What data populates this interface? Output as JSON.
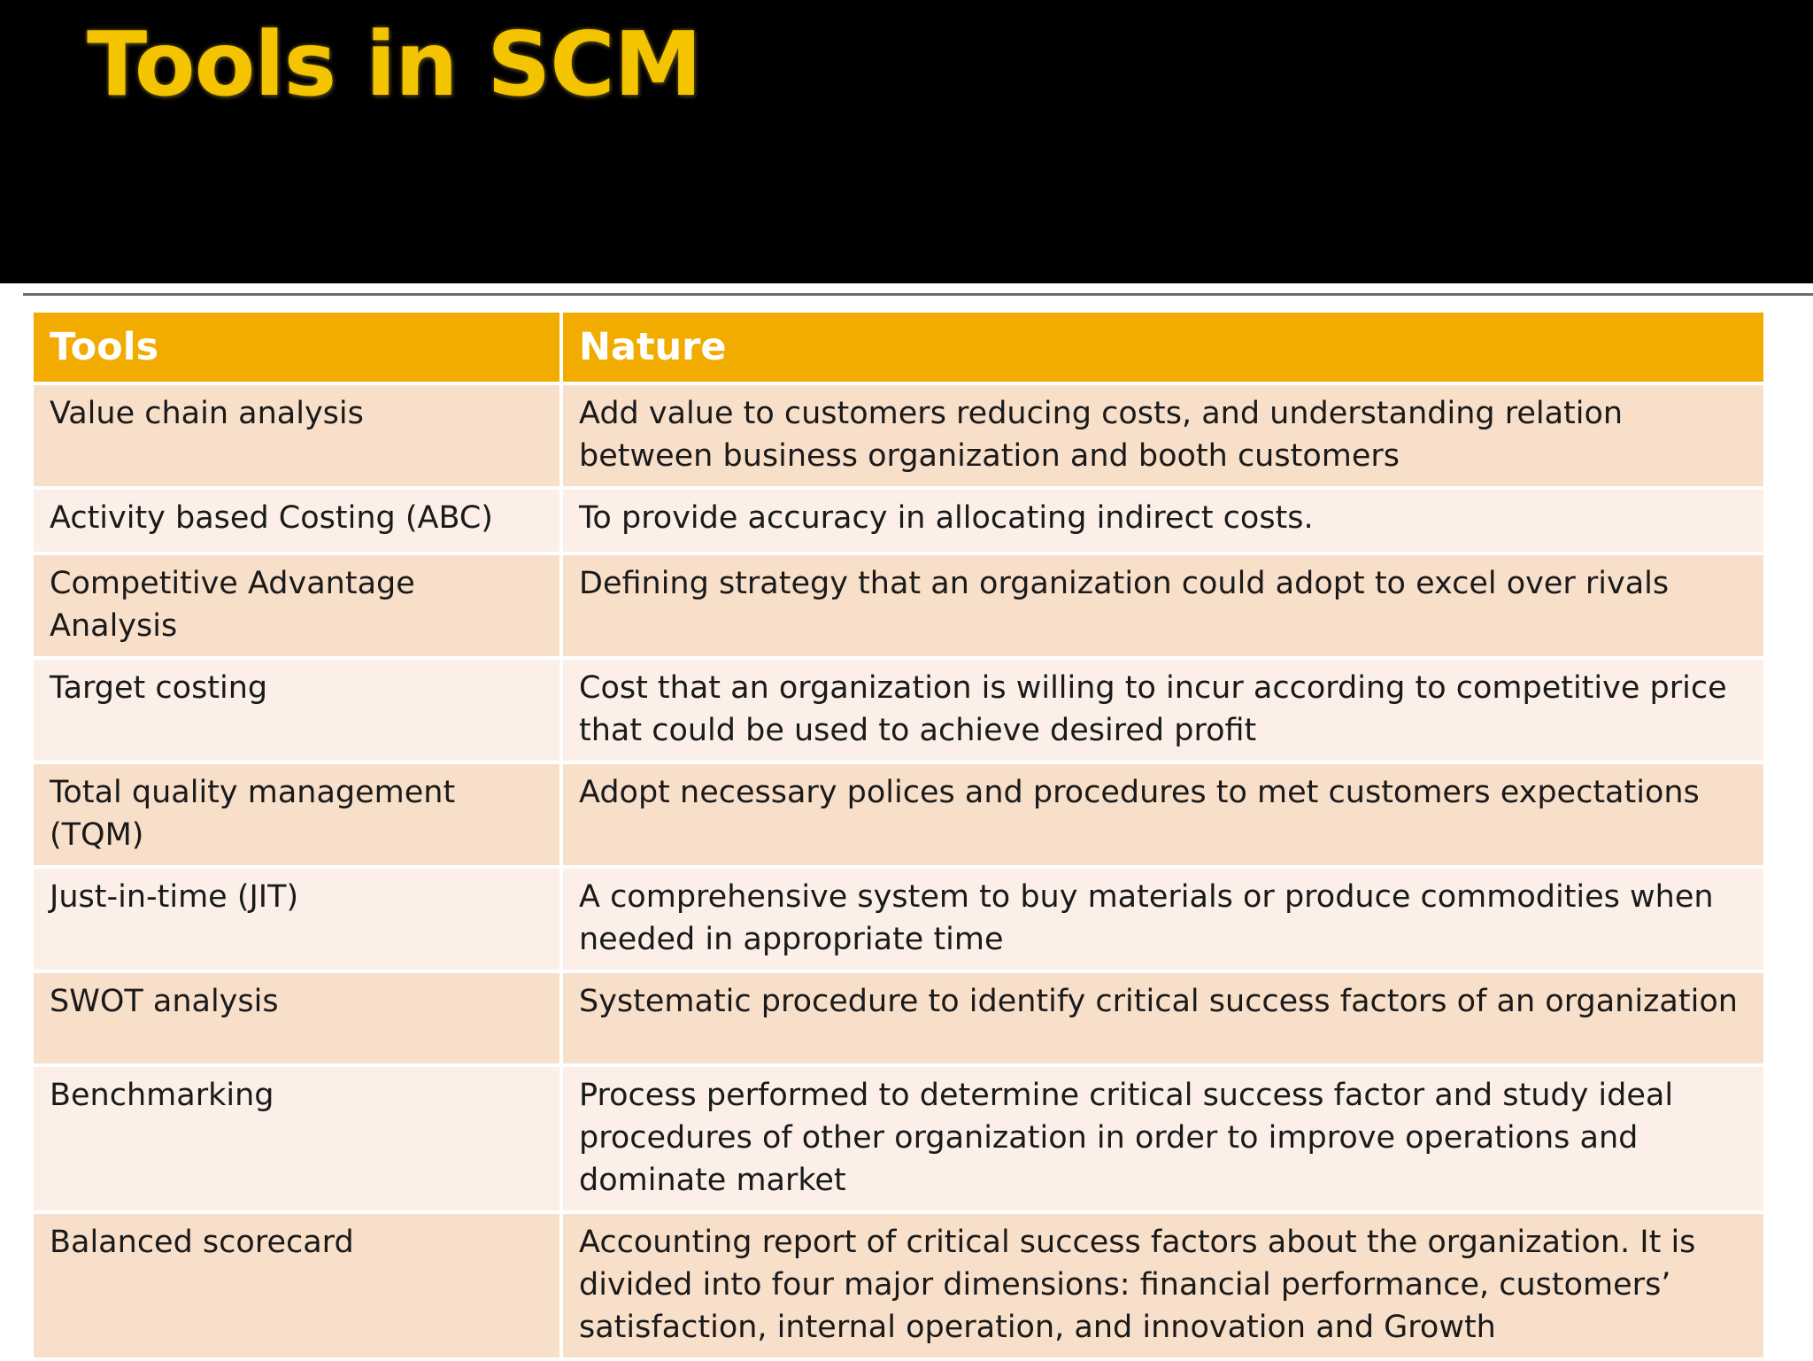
{
  "slide": {
    "title": "Tools in SCM"
  },
  "table": {
    "headers": {
      "tools": "Tools",
      "nature": "Nature"
    },
    "rows": [
      {
        "tool": "Value chain analysis",
        "nature": "Add value to customers reducing costs, and understanding relation between business organization and booth customers"
      },
      {
        "tool": "Activity based Costing (ABC)",
        "nature": "To provide accuracy in allocating indirect costs."
      },
      {
        "tool": "Competitive Advantage Analysis",
        "nature": "Defining strategy that an organization could adopt to excel over rivals"
      },
      {
        "tool": "Target costing",
        "nature": "Cost that an organization is willing to incur according to competitive price that could be used to achieve desired profit"
      },
      {
        "tool": "Total quality management (TQM)",
        "nature": "Adopt necessary polices and procedures to met customers expectations"
      },
      {
        "tool": "Just-in-time (JIT)",
        "nature": "A comprehensive system to buy materials or produce commodities when needed in appropriate time"
      },
      {
        "tool": "SWOT analysis",
        "nature": "Systematic procedure to identify critical success factors of an organization"
      },
      {
        "tool": "Benchmarking",
        "nature": "Process performed to determine critical success factor and study ideal procedures of other organization in order to improve operations and dominate market"
      },
      {
        "tool": "Balanced scorecard",
        "nature": "Accounting report of critical success factors about the organization. It is divided into four major dimensions: financial performance, customers’ satisfaction, internal operation, and innovation and Growth"
      }
    ]
  },
  "colors": {
    "title_bar": "#000000",
    "title_text": "#f5c400",
    "header_fill": "#f2ac00",
    "row_odd": "#f8dfca",
    "row_even": "#fbefe8"
  }
}
